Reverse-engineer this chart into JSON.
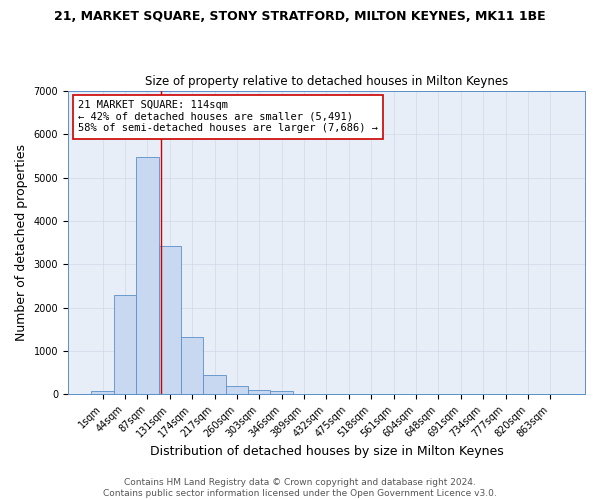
{
  "title": "21, MARKET SQUARE, STONY STRATFORD, MILTON KEYNES, MK11 1BE",
  "subtitle": "Size of property relative to detached houses in Milton Keynes",
  "xlabel": "Distribution of detached houses by size in Milton Keynes",
  "ylabel": "Number of detached properties",
  "footer_line1": "Contains HM Land Registry data © Crown copyright and database right 2024.",
  "footer_line2": "Contains public sector information licensed under the Open Government Licence v3.0.",
  "bar_labels": [
    "1sqm",
    "44sqm",
    "87sqm",
    "131sqm",
    "174sqm",
    "217sqm",
    "260sqm",
    "303sqm",
    "346sqm",
    "389sqm",
    "432sqm",
    "475sqm",
    "518sqm",
    "561sqm",
    "604sqm",
    "648sqm",
    "691sqm",
    "734sqm",
    "777sqm",
    "820sqm",
    "863sqm"
  ],
  "bar_values": [
    75,
    2280,
    5480,
    3430,
    1320,
    455,
    185,
    95,
    65,
    0,
    0,
    0,
    0,
    0,
    0,
    0,
    0,
    0,
    0,
    0,
    0
  ],
  "bar_color": "#c8d8f0",
  "bar_edge_color": "#5b8fc9",
  "ylim": [
    0,
    7000
  ],
  "yticks": [
    0,
    1000,
    2000,
    3000,
    4000,
    5000,
    6000,
    7000
  ],
  "marker_label": "21 MARKET SQUARE: 114sqm",
  "smaller_pct": 42,
  "smaller_count": 5491,
  "larger_pct": 58,
  "larger_count": 7686,
  "grid_color": "#d0d8e8",
  "bg_color": "#e8eef8",
  "title_fontsize": 9,
  "subtitle_fontsize": 8.5,
  "axis_label_fontsize": 9,
  "tick_fontsize": 7,
  "annotation_fontsize": 7.5,
  "footer_fontsize": 6.5
}
